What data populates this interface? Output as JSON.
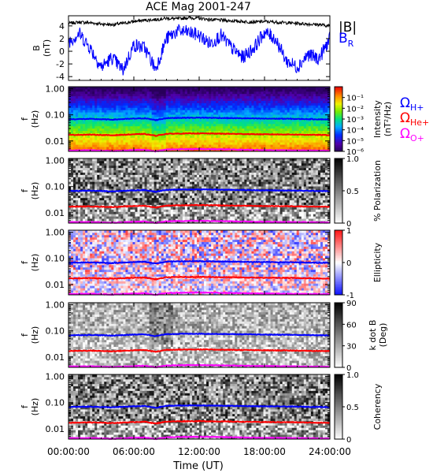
{
  "figure_title": "ACE Mag 2001-247",
  "time_axis": {
    "label": "Time (UT)",
    "ticks": [
      "00:00:00",
      "06:00:00",
      "12:00:00",
      "18:00:00",
      "24:00:00"
    ],
    "tick_hours": [
      0,
      6,
      12,
      18,
      24
    ]
  },
  "colors": {
    "B_total": "#000000",
    "B_R": "#0000ff",
    "omega_H": "#0000ff",
    "omega_He": "#ff0000",
    "omega_O": "#ff00ff"
  },
  "gyro_legend": {
    "omega_H": "Ω_H+",
    "omega_He": "Ω_He+",
    "omega_O": "Ω_O+"
  },
  "chart_data": [
    {
      "type": "line",
      "title": "ACE Mag 2001-247",
      "ylabel": "B (nT)",
      "ylim": [
        -4.6,
        5.6
      ],
      "yticks": [
        4,
        2,
        0,
        -2,
        -4
      ],
      "x_unit": "hours UT",
      "series": [
        {
          "name": "|B|",
          "x": [
            0,
            1,
            2,
            3,
            4,
            5,
            6,
            7,
            8,
            9,
            10,
            11,
            12,
            13,
            14,
            15,
            16,
            17,
            18,
            19,
            20,
            21,
            22,
            23,
            24
          ],
          "values": [
            4.4,
            4.6,
            4.5,
            4.3,
            4.2,
            4.4,
            4.7,
            4.9,
            5.0,
            5.2,
            5.1,
            5.3,
            5.2,
            5.0,
            4.9,
            4.8,
            4.7,
            4.6,
            4.7,
            4.6,
            4.5,
            4.4,
            4.3,
            4.2,
            4.0
          ]
        },
        {
          "name": "B_R",
          "x": [
            0,
            1,
            2,
            3,
            4,
            5,
            6,
            7,
            8,
            9,
            10,
            11,
            12,
            13,
            14,
            15,
            16,
            17,
            18,
            19,
            20,
            21,
            22,
            23,
            24
          ],
          "values": [
            1.5,
            2.8,
            0.5,
            -2.5,
            -1.0,
            -3.0,
            1.0,
            0.5,
            -2.8,
            2.0,
            3.2,
            3.0,
            2.5,
            1.2,
            2.5,
            0.5,
            -1.0,
            0.5,
            3.0,
            2.0,
            -1.5,
            -2.5,
            -0.5,
            -1.2,
            2.0
          ]
        }
      ]
    },
    {
      "type": "heatmap",
      "ylabel": "f (Hz)",
      "yscale": "log",
      "ylim": [
        0.004,
        1.2
      ],
      "yticks": [
        "1.00",
        "0.10",
        "0.01"
      ],
      "colorbar": {
        "label": "Intensity (nT²/Hz)",
        "scale": "log",
        "range": [
          1e-06,
          1
        ],
        "ticks": [
          "10⁻¹",
          "10⁻²",
          "10⁻³",
          "10⁻⁴",
          "10⁻⁵",
          "10⁻⁶"
        ],
        "colormap": "rainbow"
      }
    },
    {
      "type": "heatmap",
      "ylabel": "f (Hz)",
      "yscale": "log",
      "ylim": [
        0.004,
        1.2
      ],
      "yticks": [
        "1.00",
        "0.10",
        "0.01"
      ],
      "colorbar": {
        "label": "% Polarization",
        "range": [
          0,
          1
        ],
        "ticks": [
          "1.0",
          "0.5",
          "0"
        ],
        "colormap": "gray"
      }
    },
    {
      "type": "heatmap",
      "ylabel": "f (Hz)",
      "yscale": "log",
      "ylim": [
        0.004,
        1.2
      ],
      "yticks": [
        "1.00",
        "0.10",
        "0.01"
      ],
      "colorbar": {
        "label": "Ellipticity",
        "range": [
          -1,
          1
        ],
        "ticks": [
          "1",
          "0",
          "-1"
        ],
        "colormap": "blue-white-red"
      }
    },
    {
      "type": "heatmap",
      "ylabel": "f (Hz)",
      "yscale": "log",
      "ylim": [
        0.004,
        1.2
      ],
      "yticks": [
        "1.00",
        "0.10",
        "0.01"
      ],
      "colorbar": {
        "label": "k dot B (Deg)",
        "range": [
          0,
          90
        ],
        "ticks": [
          "90",
          "60",
          "30",
          "0"
        ],
        "colormap": "gray"
      }
    },
    {
      "type": "heatmap",
      "ylabel": "f (Hz)",
      "yscale": "log",
      "ylim": [
        0.004,
        1.2
      ],
      "yticks": [
        "1.00",
        "0.10",
        "0.01"
      ],
      "colorbar": {
        "label": "Coherency",
        "range": [
          0,
          1
        ],
        "ticks": [
          "1.0",
          "0.5",
          "0"
        ],
        "colormap": "gray"
      }
    },
    {
      "type": "line",
      "name": "gyrofrequency overlay (all spectral panels)",
      "ylabel": "f (Hz)",
      "x_unit": "hours UT",
      "series": [
        {
          "name": "Ω_H+",
          "x": [
            0,
            2,
            4,
            6,
            7,
            8,
            9,
            10,
            12,
            14,
            16,
            18,
            20,
            22,
            24
          ],
          "values": [
            0.068,
            0.07,
            0.066,
            0.072,
            0.074,
            0.063,
            0.075,
            0.077,
            0.078,
            0.076,
            0.074,
            0.072,
            0.071,
            0.069,
            0.067
          ]
        },
        {
          "name": "Ω_He+",
          "x": [
            0,
            2,
            4,
            6,
            7,
            8,
            9,
            10,
            12,
            14,
            16,
            18,
            20,
            22,
            24
          ],
          "values": [
            0.017,
            0.0175,
            0.0165,
            0.018,
            0.0185,
            0.0158,
            0.0188,
            0.0192,
            0.0195,
            0.019,
            0.0185,
            0.018,
            0.0178,
            0.0173,
            0.0168
          ]
        },
        {
          "name": "Ω_O+",
          "x": [
            0,
            2,
            4,
            6,
            7,
            8,
            9,
            10,
            12,
            14,
            16,
            18,
            20,
            22,
            24
          ],
          "values": [
            0.0043,
            0.0044,
            0.0041,
            0.0045,
            0.0046,
            0.004,
            0.0047,
            0.0048,
            0.0049,
            0.0048,
            0.0046,
            0.0045,
            0.0044,
            0.0043,
            0.0042
          ]
        }
      ]
    }
  ]
}
